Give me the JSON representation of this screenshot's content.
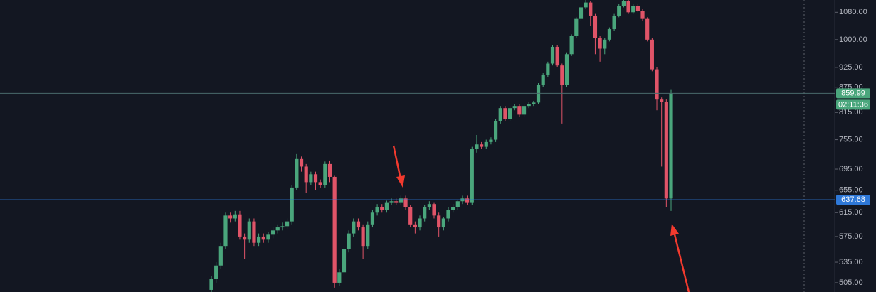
{
  "chart_data": {
    "type": "candlestick",
    "log_scale": true,
    "ylim": [
      492,
      1118
    ],
    "yticks": [
      {
        "value": 1080,
        "label": "1080.00"
      },
      {
        "value": 1000,
        "label": "1000.00"
      },
      {
        "value": 925,
        "label": "925.00"
      },
      {
        "value": 875,
        "label": "875.00"
      },
      {
        "value": 815,
        "label": "815.00"
      },
      {
        "value": 755,
        "label": "755.00"
      },
      {
        "value": 695,
        "label": "695.00"
      },
      {
        "value": 655,
        "label": "655.00"
      },
      {
        "value": 615,
        "label": "615.00"
      },
      {
        "value": 575,
        "label": "575.00"
      },
      {
        "value": 535,
        "label": "535.00"
      },
      {
        "value": 505,
        "label": "505.00"
      }
    ],
    "up_color": "#4aa67c",
    "down_color": "#e05468",
    "open": [
      495,
      510,
      530,
      560,
      610,
      605,
      612,
      575,
      570,
      600,
      565,
      575,
      570,
      578,
      585,
      590,
      592,
      600,
      660,
      715,
      700,
      670,
      685,
      670,
      665,
      705,
      680,
      505,
      520,
      555,
      580,
      600,
      590,
      560,
      595,
      615,
      625,
      620,
      632,
      635,
      632,
      640,
      625,
      595,
      590,
      605,
      625,
      630,
      610,
      590,
      605,
      620,
      625,
      635,
      640,
      632,
      735,
      745,
      740,
      750,
      755,
      795,
      825,
      800,
      825,
      830,
      810,
      830,
      835,
      838,
      880,
      905,
      935,
      980,
      930,
      880,
      960,
      1010,
      1060,
      1095,
      1110,
      1070,
      1005,
      975,
      1000,
      1030,
      1070,
      1100,
      1115,
      1080,
      1100,
      1085,
      1060,
      1000,
      920,
      845,
      840,
      640
    ],
    "high": [
      515,
      535,
      565,
      615,
      615,
      618,
      618,
      580,
      605,
      605,
      580,
      580,
      582,
      590,
      595,
      598,
      605,
      665,
      725,
      720,
      705,
      690,
      690,
      675,
      710,
      712,
      682,
      525,
      560,
      585,
      605,
      605,
      595,
      600,
      620,
      630,
      630,
      636,
      640,
      640,
      645,
      645,
      628,
      600,
      610,
      628,
      635,
      632,
      615,
      608,
      624,
      630,
      638,
      645,
      645,
      740,
      765,
      750,
      755,
      760,
      800,
      830,
      830,
      830,
      835,
      835,
      835,
      840,
      842,
      885,
      910,
      940,
      985,
      985,
      935,
      965,
      1015,
      1065,
      1100,
      1118,
      1115,
      1075,
      1010,
      1005,
      1035,
      1075,
      1105,
      1118,
      1118,
      1105,
      1105,
      1090,
      1065,
      1005,
      925,
      850,
      845,
      870
    ],
    "low": [
      490,
      505,
      525,
      555,
      598,
      600,
      570,
      540,
      565,
      560,
      560,
      565,
      565,
      572,
      580,
      585,
      588,
      595,
      655,
      690,
      650,
      665,
      655,
      660,
      660,
      670,
      498,
      500,
      515,
      550,
      575,
      585,
      540,
      555,
      590,
      610,
      615,
      615,
      628,
      628,
      628,
      620,
      590,
      580,
      585,
      600,
      620,
      605,
      575,
      585,
      600,
      615,
      620,
      630,
      628,
      628,
      728,
      735,
      735,
      745,
      750,
      790,
      795,
      795,
      820,
      805,
      805,
      825,
      830,
      835,
      875,
      900,
      930,
      925,
      790,
      875,
      955,
      1005,
      1055,
      1090,
      1040,
      960,
      940,
      960,
      995,
      1025,
      1065,
      1095,
      1075,
      1075,
      1080,
      1055,
      995,
      915,
      820,
      700,
      625,
      618
    ],
    "close": [
      510,
      530,
      560,
      610,
      605,
      612,
      575,
      570,
      600,
      565,
      575,
      570,
      578,
      585,
      590,
      592,
      600,
      660,
      715,
      700,
      670,
      685,
      670,
      665,
      705,
      680,
      505,
      520,
      555,
      580,
      600,
      590,
      560,
      595,
      615,
      625,
      620,
      632,
      635,
      632,
      640,
      625,
      595,
      590,
      605,
      625,
      630,
      610,
      590,
      605,
      620,
      625,
      635,
      640,
      632,
      735,
      745,
      740,
      750,
      755,
      795,
      825,
      800,
      825,
      830,
      810,
      830,
      835,
      838,
      880,
      905,
      935,
      980,
      930,
      880,
      960,
      1010,
      1060,
      1095,
      1110,
      1070,
      1005,
      975,
      1000,
      1030,
      1070,
      1100,
      1115,
      1080,
      1100,
      1085,
      1060,
      1000,
      920,
      845,
      840,
      640,
      860
    ],
    "price_lines": [
      {
        "value": 859.99,
        "color": "#4aa67c",
        "line_color": "#4a6a6c"
      },
      {
        "value": 637.68,
        "color": "#2e78d8",
        "line_color": "#2e78d8"
      }
    ],
    "countdown": "02:11:36"
  }
}
